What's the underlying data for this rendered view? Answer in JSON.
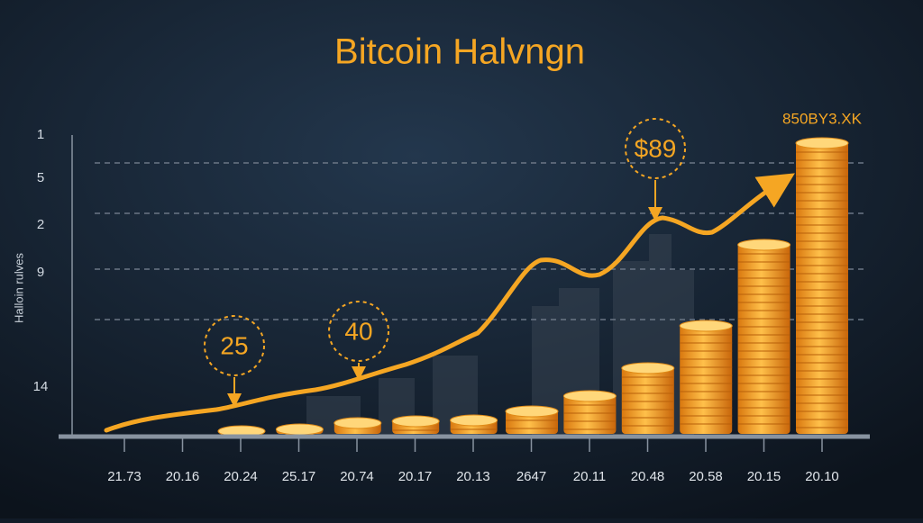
{
  "title": "Bitcoin Halvngn",
  "corner_label": "850BY3.XK",
  "axis_label": "Halloin rulves",
  "y_labels": [
    "1",
    "5",
    "2",
    "9",
    "14"
  ],
  "x_labels": [
    "21.73",
    "20.16",
    "20.24",
    "25.17",
    "20.74",
    "20.17",
    "20.13",
    "2647",
    "20.11",
    "20.48",
    "20.58",
    "20.15",
    "20.10"
  ],
  "callouts": [
    "25",
    "40",
    "$89"
  ]
}
